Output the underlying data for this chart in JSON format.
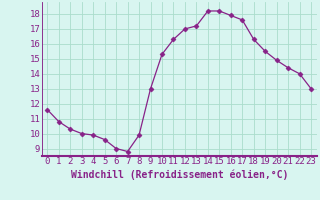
{
  "x": [
    0,
    1,
    2,
    3,
    4,
    5,
    6,
    7,
    8,
    9,
    10,
    11,
    12,
    13,
    14,
    15,
    16,
    17,
    18,
    19,
    20,
    21,
    22,
    23
  ],
  "y": [
    11.6,
    10.8,
    10.3,
    10.0,
    9.9,
    9.6,
    9.0,
    8.8,
    9.9,
    13.0,
    15.3,
    16.3,
    17.0,
    17.2,
    18.2,
    18.2,
    17.9,
    17.6,
    16.3,
    15.5,
    14.9,
    14.4,
    14.0,
    13.0
  ],
  "line_color": "#882288",
  "marker": "D",
  "marker_size": 2.5,
  "bg_color": "#d8f5f0",
  "grid_color": "#aaddcc",
  "xlabel": "Windchill (Refroidissement éolien,°C)",
  "xlabel_fontsize": 7,
  "xtick_labels": [
    "0",
    "1",
    "2",
    "3",
    "4",
    "5",
    "6",
    "7",
    "8",
    "9",
    "10",
    "11",
    "12",
    "13",
    "14",
    "15",
    "16",
    "17",
    "18",
    "19",
    "20",
    "21",
    "22",
    "23"
  ],
  "ytick_values": [
    9,
    10,
    11,
    12,
    13,
    14,
    15,
    16,
    17,
    18
  ],
  "ylim": [
    8.5,
    18.8
  ],
  "xlim": [
    -0.5,
    23.5
  ],
  "tick_fontsize": 6.5
}
